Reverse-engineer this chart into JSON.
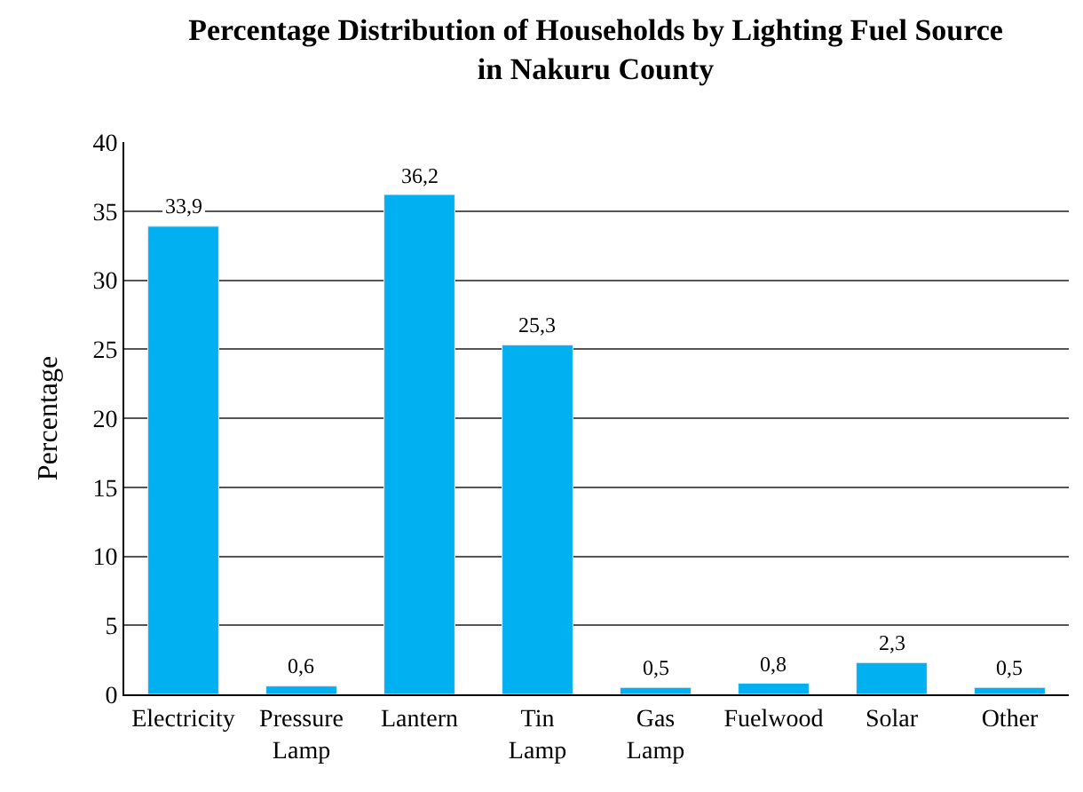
{
  "chart_data": {
    "type": "bar",
    "title": "Percentage Distribution of Households by Lighting Fuel Source in Nakuru County",
    "ylabel": "Percentage",
    "categories": [
      "Electricity",
      "Pressure Lamp",
      "Lantern",
      "Tin Lamp",
      "Gas Lamp",
      "Fuelwood",
      "Solar",
      "Other"
    ],
    "values": [
      33.9,
      0.6,
      36.2,
      25.3,
      0.5,
      0.8,
      2.3,
      0.5
    ],
    "value_labels": [
      "33,9",
      "0,6",
      "36,2",
      "25,3",
      "0,5",
      "0,8",
      "2,3",
      "0,5"
    ],
    "color": "#00b0f0",
    "ylim": [
      0,
      40
    ],
    "yticks": [
      0,
      5,
      10,
      15,
      20,
      25,
      30,
      35,
      40
    ],
    "grid": "y",
    "legend": false
  }
}
